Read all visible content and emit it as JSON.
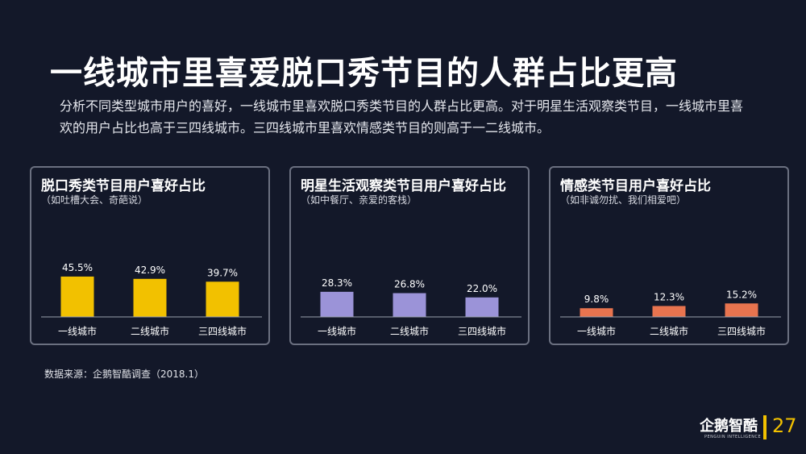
{
  "header": {
    "title": "一线城市里喜爱脱口秀节目的人群占比更高",
    "subtitle": "分析不同类型城市用户的喜好，一线城市里喜欢脱口秀类节目的人群占比更高。对于明星生活观察类节目，一线城市里喜欢的用户占比也高于三四线城市。三四线城市里喜欢情感类节目的则高于一二线城市。"
  },
  "chart_data": [
    {
      "type": "bar",
      "title": "脱口秀类节目用户喜好占比",
      "subtitle": "（如吐槽大会、奇葩说）",
      "categories": [
        "一线城市",
        "二线城市",
        "三四线城市"
      ],
      "values": [
        45.5,
        42.9,
        39.7
      ],
      "value_labels": [
        "45.5%",
        "42.9%",
        "39.7%"
      ],
      "color": "#f2c100",
      "unit": "%"
    },
    {
      "type": "bar",
      "title": "明星生活观察类节目用户喜好占比",
      "subtitle": "（如中餐厅、亲爱的客栈）",
      "categories": [
        "一线城市",
        "二线城市",
        "三四线城市"
      ],
      "values": [
        28.3,
        26.8,
        22.0
      ],
      "value_labels": [
        "28.3%",
        "26.8%",
        "22.0%"
      ],
      "color": "#9b93d8",
      "unit": "%"
    },
    {
      "type": "bar",
      "title": "情感类节目用户喜好占比",
      "subtitle": "（如非诚勿扰、我们相爱吧）",
      "categories": [
        "一线城市",
        "二线城市",
        "三四线城市"
      ],
      "values": [
        9.8,
        12.3,
        15.2
      ],
      "value_labels": [
        "9.8%",
        "12.3%",
        "15.2%"
      ],
      "color": "#e8744f",
      "unit": "%"
    }
  ],
  "footer": {
    "source": "数据来源：企鹅智酷调查（2018.1）",
    "logo_text": "企鹅智酷",
    "logo_sub": "PENGUIN INTELLIGENCE",
    "page_number": "27"
  }
}
